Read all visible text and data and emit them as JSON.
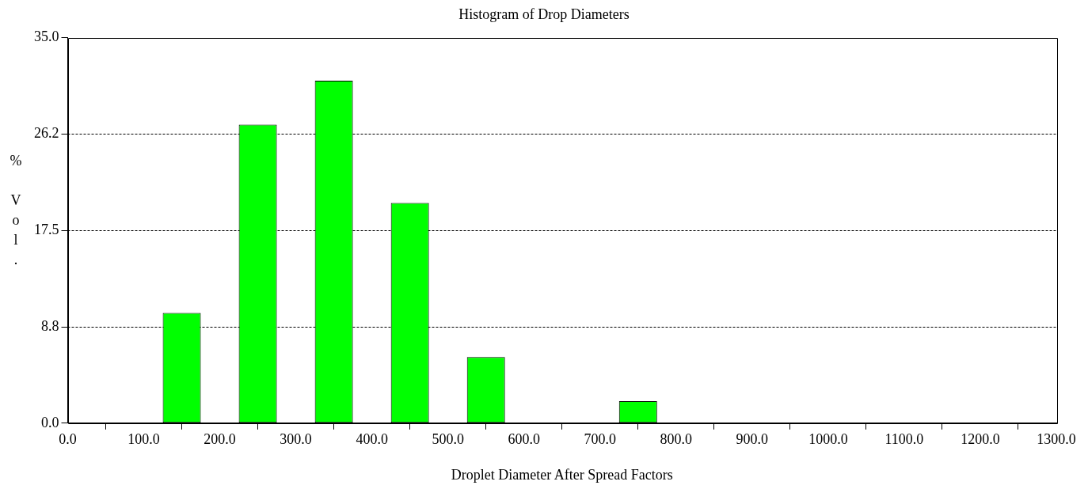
{
  "chart_data": {
    "type": "histogram",
    "title": "Histogram of Drop Diameters",
    "xlabel": "Droplet Diameter After Spread Factors",
    "ylabel": "% Vol.",
    "bins": [
      0,
      100,
      200,
      300,
      400,
      500,
      600,
      700,
      800,
      900,
      1000,
      1100,
      1200,
      1300
    ],
    "values": [
      0,
      10.0,
      27.1,
      31.1,
      20.0,
      6.0,
      0,
      2.0,
      0,
      0,
      0,
      0,
      0
    ],
    "color": "#00ff00",
    "xlim": [
      0,
      1300
    ],
    "xticks": [
      {
        "value": 0,
        "label": "0.0"
      },
      {
        "value": 100,
        "label": "100.0"
      },
      {
        "value": 200,
        "label": "200.0"
      },
      {
        "value": 300,
        "label": "300.0"
      },
      {
        "value": 400,
        "label": "400.0"
      },
      {
        "value": 500,
        "label": "500.0"
      },
      {
        "value": 600,
        "label": "600.0"
      },
      {
        "value": 700,
        "label": "700.0"
      },
      {
        "value": 800,
        "label": "800.0"
      },
      {
        "value": 900,
        "label": "900.0"
      },
      {
        "value": 1000,
        "label": "1000.0"
      },
      {
        "value": 1100,
        "label": "1100.0"
      },
      {
        "value": 1200,
        "label": "1200.0"
      },
      {
        "value": 1300,
        "label": "1300.0"
      }
    ],
    "ylim": [
      0,
      35
    ],
    "yticks": [
      {
        "value": 0,
        "label": "0.0"
      },
      {
        "value": 8.75,
        "label": "8.8"
      },
      {
        "value": 17.5,
        "label": "17.5"
      },
      {
        "value": 26.25,
        "label": "26.2"
      },
      {
        "value": 35,
        "label": "35.0"
      }
    ],
    "grid": "y",
    "legend": false
  }
}
